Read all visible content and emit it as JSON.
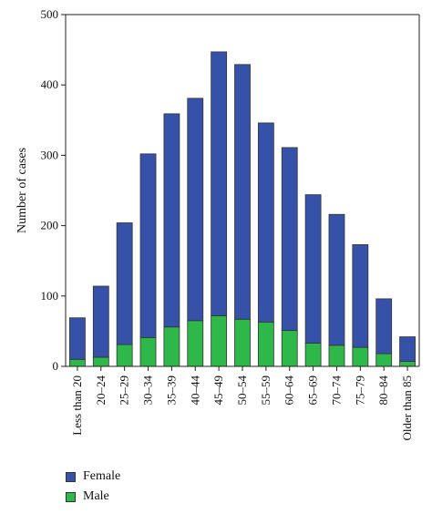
{
  "chart_data": {
    "type": "bar",
    "stacked": true,
    "categories": [
      "Less than 20",
      "20–24",
      "25–29",
      "30–34",
      "35–39",
      "40–44",
      "45–49",
      "50–54",
      "55–59",
      "60–64",
      "65–69",
      "70–74",
      "75–79",
      "80–84",
      "Older than 85"
    ],
    "series": [
      {
        "name": "Male",
        "color": "#2fb84a",
        "values": [
          10,
          13,
          31,
          41,
          56,
          65,
          72,
          67,
          63,
          51,
          33,
          30,
          27,
          18,
          7
        ]
      },
      {
        "name": "Female",
        "color": "#3651a8",
        "values": [
          59,
          101,
          173,
          261,
          303,
          316,
          375,
          362,
          283,
          260,
          211,
          186,
          146,
          78,
          35
        ]
      }
    ],
    "ylabel": "Number of cases",
    "xlabel": "",
    "ylim": [
      0,
      500
    ],
    "yticks": [
      0,
      100,
      200,
      300,
      400,
      500
    ],
    "grid": false,
    "legend": {
      "position": "bottom-left",
      "order": [
        "Female",
        "Male"
      ]
    }
  }
}
